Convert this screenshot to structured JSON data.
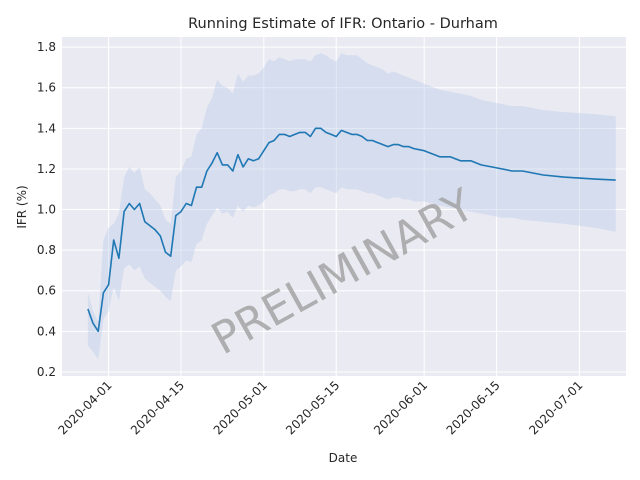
{
  "chart_data": {
    "type": "line",
    "title": "Running Estimate of IFR: Ontario - Durham",
    "xlabel": "Date",
    "ylabel": "IFR (%)",
    "watermark": "PRELIMINARY",
    "grid": true,
    "xlim": [
      "2020-03-23",
      "2020-07-10"
    ],
    "ylim": [
      0.18,
      1.85
    ],
    "y_ticks": [
      "0.2",
      "0.4",
      "0.6",
      "0.8",
      "1.0",
      "1.2",
      "1.4",
      "1.6",
      "1.8"
    ],
    "x_ticks": [
      "2020-04-01",
      "2020-04-15",
      "2020-05-01",
      "2020-05-15",
      "2020-06-01",
      "2020-06-15",
      "2020-07-01"
    ],
    "colors": {
      "line": "#1f77b4",
      "band": "#aec7e8",
      "background": "#eaeaf2",
      "grid": "#ffffff"
    },
    "series": [
      {
        "x": [
          "2020-03-28",
          "2020-03-29",
          "2020-03-30",
          "2020-03-31",
          "2020-04-01",
          "2020-04-02",
          "2020-04-03",
          "2020-04-04",
          "2020-04-05",
          "2020-04-06",
          "2020-04-07",
          "2020-04-08",
          "2020-04-09",
          "2020-04-10",
          "2020-04-11",
          "2020-04-12",
          "2020-04-13",
          "2020-04-14",
          "2020-04-15",
          "2020-04-16",
          "2020-04-17",
          "2020-04-18",
          "2020-04-19",
          "2020-04-20",
          "2020-04-21",
          "2020-04-22",
          "2020-04-23",
          "2020-04-24",
          "2020-04-25",
          "2020-04-26",
          "2020-04-27",
          "2020-04-28",
          "2020-04-29",
          "2020-04-30",
          "2020-05-01",
          "2020-05-02",
          "2020-05-03",
          "2020-05-04",
          "2020-05-05",
          "2020-05-06",
          "2020-05-07",
          "2020-05-08",
          "2020-05-09",
          "2020-05-10",
          "2020-05-11",
          "2020-05-12",
          "2020-05-13",
          "2020-05-14",
          "2020-05-15",
          "2020-05-16",
          "2020-05-17",
          "2020-05-18",
          "2020-05-19",
          "2020-05-20",
          "2020-05-21",
          "2020-05-22",
          "2020-05-23",
          "2020-05-24",
          "2020-05-25",
          "2020-05-26",
          "2020-05-27",
          "2020-05-28",
          "2020-05-29",
          "2020-05-30",
          "2020-06-01",
          "2020-06-04",
          "2020-06-06",
          "2020-06-08",
          "2020-06-10",
          "2020-06-12",
          "2020-06-14",
          "2020-06-16",
          "2020-06-18",
          "2020-06-20",
          "2020-06-24",
          "2020-06-28",
          "2020-07-04",
          "2020-07-08"
        ],
        "values": [
          0.51,
          0.44,
          0.4,
          0.59,
          0.63,
          0.85,
          0.76,
          0.99,
          1.03,
          1.0,
          1.03,
          0.94,
          0.92,
          0.9,
          0.87,
          0.79,
          0.77,
          0.97,
          0.99,
          1.03,
          1.02,
          1.11,
          1.11,
          1.19,
          1.23,
          1.28,
          1.22,
          1.22,
          1.19,
          1.27,
          1.21,
          1.25,
          1.24,
          1.25,
          1.29,
          1.33,
          1.34,
          1.37,
          1.37,
          1.36,
          1.37,
          1.38,
          1.38,
          1.36,
          1.4,
          1.4,
          1.38,
          1.37,
          1.36,
          1.39,
          1.38,
          1.37,
          1.37,
          1.36,
          1.34,
          1.34,
          1.33,
          1.32,
          1.31,
          1.32,
          1.32,
          1.31,
          1.31,
          1.3,
          1.29,
          1.26,
          1.26,
          1.24,
          1.24,
          1.22,
          1.21,
          1.2,
          1.19,
          1.19,
          1.17,
          1.16,
          1.15,
          1.145
        ],
        "lower": [
          0.33,
          0.3,
          0.26,
          0.46,
          0.5,
          0.62,
          0.55,
          0.71,
          0.73,
          0.7,
          0.72,
          0.66,
          0.64,
          0.62,
          0.6,
          0.57,
          0.55,
          0.7,
          0.72,
          0.75,
          0.74,
          0.83,
          0.85,
          0.93,
          0.97,
          1.01,
          0.98,
          0.99,
          0.96,
          1.02,
          0.99,
          1.02,
          1.01,
          1.02,
          1.04,
          1.07,
          1.08,
          1.1,
          1.1,
          1.09,
          1.09,
          1.1,
          1.1,
          1.08,
          1.11,
          1.11,
          1.1,
          1.09,
          1.08,
          1.11,
          1.1,
          1.1,
          1.1,
          1.09,
          1.08,
          1.08,
          1.07,
          1.06,
          1.05,
          1.06,
          1.06,
          1.05,
          1.05,
          1.04,
          1.04,
          1.02,
          1.01,
          1.0,
          0.99,
          0.98,
          0.97,
          0.96,
          0.96,
          0.95,
          0.94,
          0.93,
          0.91,
          0.89
        ],
        "upper": [
          0.59,
          0.5,
          0.45,
          0.85,
          0.91,
          0.93,
          0.98,
          1.16,
          1.21,
          1.18,
          1.21,
          1.1,
          1.08,
          1.05,
          1.02,
          0.95,
          0.93,
          1.16,
          1.19,
          1.25,
          1.26,
          1.37,
          1.4,
          1.5,
          1.55,
          1.64,
          1.61,
          1.6,
          1.57,
          1.67,
          1.63,
          1.66,
          1.66,
          1.67,
          1.7,
          1.74,
          1.73,
          1.75,
          1.74,
          1.73,
          1.74,
          1.74,
          1.74,
          1.73,
          1.76,
          1.77,
          1.76,
          1.74,
          1.73,
          1.77,
          1.76,
          1.76,
          1.76,
          1.74,
          1.72,
          1.71,
          1.7,
          1.69,
          1.67,
          1.68,
          1.67,
          1.66,
          1.65,
          1.64,
          1.62,
          1.59,
          1.58,
          1.57,
          1.56,
          1.54,
          1.53,
          1.52,
          1.51,
          1.51,
          1.49,
          1.48,
          1.47,
          1.46
        ]
      }
    ]
  }
}
